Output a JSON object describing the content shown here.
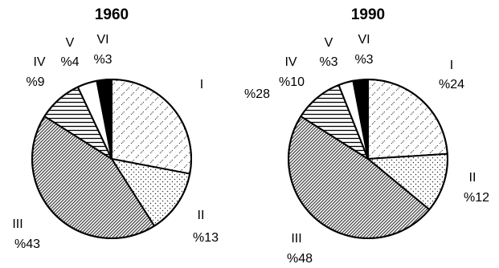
{
  "chart_data": [
    {
      "type": "pie",
      "title": "1960",
      "slices": [
        {
          "label": "I",
          "percent_label": "%28",
          "value": 28,
          "pattern": "pattern-dashes"
        },
        {
          "label": "II",
          "percent_label": "%13",
          "value": 13,
          "pattern": "pattern-dots"
        },
        {
          "label": "III",
          "percent_label": "%43",
          "value": 43,
          "pattern": "pattern-diagonal"
        },
        {
          "label": "IV",
          "percent_label": "%9",
          "value": 9,
          "pattern": "pattern-horizontal"
        },
        {
          "label": "V",
          "percent_label": "%4",
          "value": 4,
          "pattern": "pattern-white"
        },
        {
          "label": "VI",
          "percent_label": "%3",
          "value": 3,
          "pattern": "pattern-black"
        }
      ]
    },
    {
      "type": "pie",
      "title": "1990",
      "slices": [
        {
          "label": "I",
          "percent_label": "%24",
          "value": 24,
          "pattern": "pattern-dashes"
        },
        {
          "label": "II",
          "percent_label": "%12",
          "value": 12,
          "pattern": "pattern-dots"
        },
        {
          "label": "III",
          "percent_label": "%48",
          "value": 48,
          "pattern": "pattern-diagonal"
        },
        {
          "label": "IV",
          "percent_label": "%10",
          "value": 10,
          "pattern": "pattern-horizontal"
        },
        {
          "label": "V",
          "percent_label": "%3",
          "value": 3,
          "pattern": "pattern-white"
        },
        {
          "label": "VI",
          "percent_label": "%3",
          "value": 3,
          "pattern": "pattern-black"
        }
      ]
    }
  ]
}
